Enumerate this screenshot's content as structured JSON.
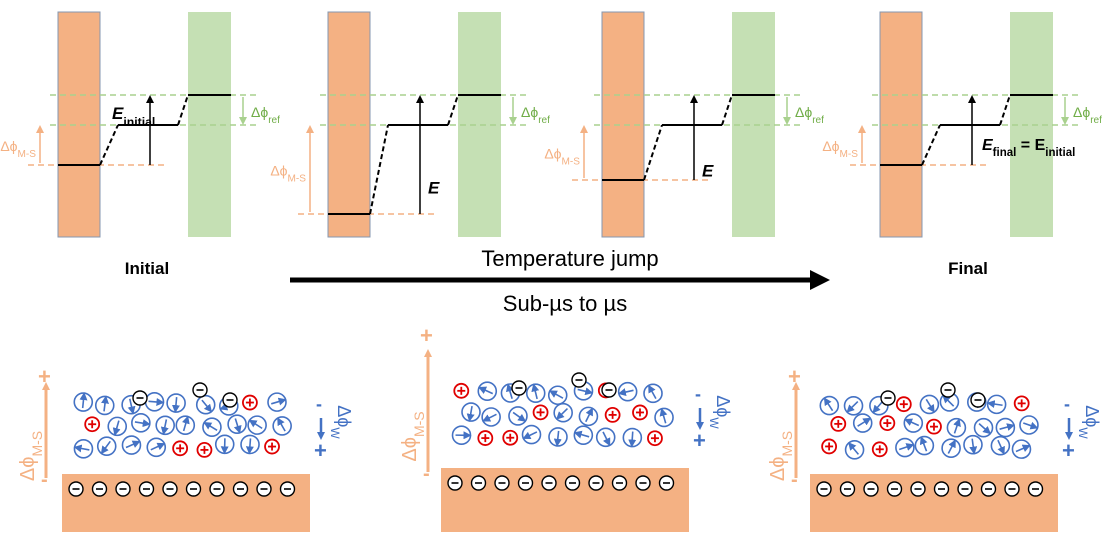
{
  "colors": {
    "metal": "#f4b183",
    "metal_edge": "#8497b0",
    "ref": "#c5e0b4",
    "ref_dashed": "#a9d18e",
    "ref_text": "#70ad47",
    "ms_text": "#f4b183",
    "level": "#000000",
    "water_blue": "#4472c4",
    "cation_red": "#e00000",
    "anion_black": "#000000"
  },
  "labels": {
    "stage_initial": "Initial",
    "stage_final": "Final",
    "process": "Temperature jump",
    "timescale": "Sub-µs to µs",
    "delta_ref": "Δϕref",
    "delta_ref_main": "Δϕ",
    "delta_ref_sub": "ref",
    "delta_ms_main": "Δϕ",
    "delta_ms_sub": "M-S",
    "delta_w_main": "Δϕ",
    "delta_w_sub": "W",
    "e_initial_main": "E",
    "e_initial_sub": "initial",
    "e_plain": "E",
    "e_final_main": "E",
    "e_final_sub": "final",
    "e_final_eq": "= E",
    "e_final_eq_sub": "initial",
    "plus": "+",
    "minus": "-"
  },
  "icons": {
    "cation": "circled-plus-icon",
    "anion": "circled-minus-icon",
    "water_dipole": "dipole-arrow-icon",
    "surface_charge": "circled-minus-icon",
    "arrow": "right-arrow-icon"
  }
}
